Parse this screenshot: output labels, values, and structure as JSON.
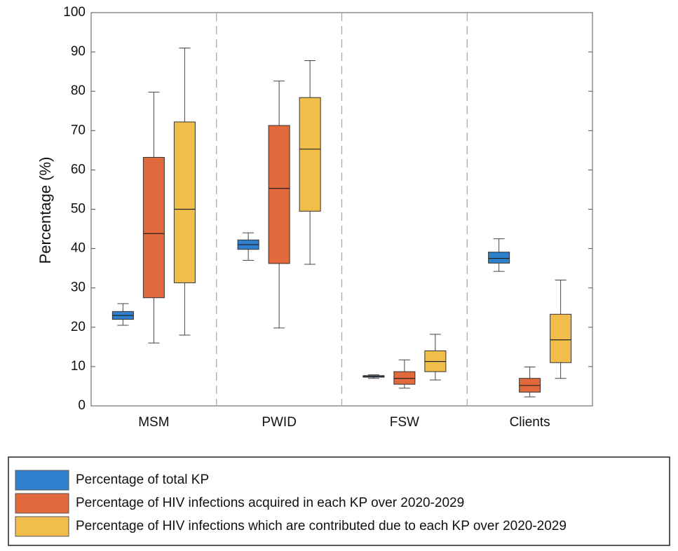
{
  "chart_data": {
    "type": "box",
    "y_label": "Percentage (%)",
    "categories": [
      "MSM",
      "PWID",
      "FSW",
      "Clients"
    ],
    "ylim": [
      0,
      100
    ],
    "yticks": [
      0,
      10,
      20,
      30,
      40,
      50,
      60,
      70,
      80,
      90,
      100
    ],
    "series": [
      {
        "name": "Percentage of total KP",
        "color": "#2f80cc",
        "min": [
          20.5,
          37,
          7,
          34.2
        ],
        "q1": [
          22,
          39.8,
          7.3,
          36.3
        ],
        "median": [
          23,
          41,
          7.5,
          37.5
        ],
        "q3": [
          24,
          42.2,
          7.7,
          39.1
        ],
        "max": [
          26,
          44,
          7.9,
          42.5
        ]
      },
      {
        "name": "Percentage of HIV infections acquired in each KP over 2020-2029",
        "color": "#e2693b",
        "min": [
          16,
          19.8,
          4.5,
          2.3
        ],
        "q1": [
          27.5,
          36.2,
          5.5,
          3.5
        ],
        "median": [
          43.8,
          55.3,
          7,
          5.2
        ],
        "q3": [
          63.2,
          71.3,
          8.7,
          7
        ],
        "max": [
          79.8,
          82.6,
          11.7,
          9.9
        ]
      },
      {
        "name": "Percentage of HIV infections which are contributed due to each KP over 2020-2029",
        "color": "#f2be4b",
        "min": [
          18,
          36,
          6.6,
          7
        ],
        "q1": [
          31.3,
          49.5,
          8.7,
          11
        ],
        "median": [
          50,
          65.3,
          11.3,
          16.8
        ],
        "q3": [
          72.2,
          78.4,
          14,
          23.3
        ],
        "max": [
          91,
          87.8,
          18.2,
          32
        ]
      }
    ]
  }
}
